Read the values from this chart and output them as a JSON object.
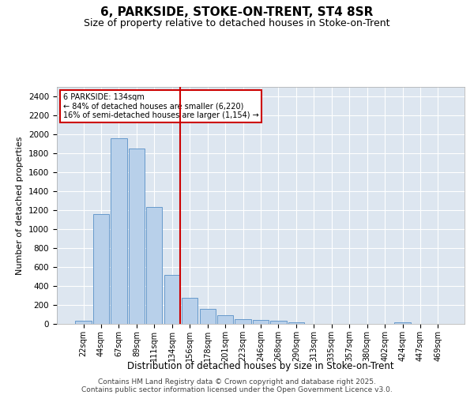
{
  "title": "6, PARKSIDE, STOKE-ON-TRENT, ST4 8SR",
  "subtitle": "Size of property relative to detached houses in Stoke-on-Trent",
  "xlabel": "Distribution of detached houses by size in Stoke-on-Trent",
  "ylabel": "Number of detached properties",
  "bar_color": "#b8d0ea",
  "bar_edge_color": "#6699cc",
  "highlight_color": "#cc0000",
  "bg_color": "#dde6f0",
  "grid_color": "#ffffff",
  "categories": [
    "22sqm",
    "44sqm",
    "67sqm",
    "89sqm",
    "111sqm",
    "134sqm",
    "156sqm",
    "178sqm",
    "201sqm",
    "223sqm",
    "246sqm",
    "268sqm",
    "290sqm",
    "313sqm",
    "335sqm",
    "357sqm",
    "380sqm",
    "402sqm",
    "424sqm",
    "447sqm",
    "469sqm"
  ],
  "values": [
    30,
    1155,
    1960,
    1850,
    1230,
    520,
    275,
    155,
    90,
    50,
    45,
    30,
    20,
    0,
    0,
    0,
    0,
    0,
    20,
    0,
    0
  ],
  "highlight_index": 5,
  "annotation_line1": "6 PARKSIDE: 134sqm",
  "annotation_line2": "← 84% of detached houses are smaller (6,220)",
  "annotation_line3": "16% of semi-detached houses are larger (1,154) →",
  "ylim": [
    0,
    2500
  ],
  "yticks": [
    0,
    200,
    400,
    600,
    800,
    1000,
    1200,
    1400,
    1600,
    1800,
    2000,
    2200,
    2400
  ],
  "footer_line1": "Contains HM Land Registry data © Crown copyright and database right 2025.",
  "footer_line2": "Contains public sector information licensed under the Open Government Licence v3.0."
}
